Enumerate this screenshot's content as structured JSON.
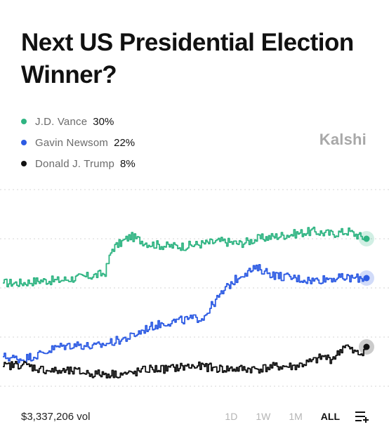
{
  "header": {
    "title": "Next US Presidential Election Winner?",
    "brand": "Kalshi"
  },
  "legend": [
    {
      "name": "J.D. Vance",
      "value": "30%",
      "color": "#2fb482"
    },
    {
      "name": "Gavin Newsom",
      "value": "22%",
      "color": "#2d5be3"
    },
    {
      "name": "Donald J. Trump",
      "value": "8%",
      "color": "#111111"
    }
  ],
  "footer": {
    "volume": "$3,337,206 vol",
    "ranges": [
      {
        "label": "1D",
        "active": false
      },
      {
        "label": "1W",
        "active": false
      },
      {
        "label": "1M",
        "active": false
      },
      {
        "label": "ALL",
        "active": true
      }
    ],
    "menu_icon": "list-add-icon"
  },
  "chart_data": {
    "type": "line",
    "title": "Next US Presidential Election Winner?",
    "xlabel": "",
    "ylabel": "",
    "ylim": [
      0,
      40
    ],
    "grid": true,
    "legend_position": "top-left",
    "series": [
      {
        "name": "J.D. Vance",
        "color": "#2fb482",
        "x": [
          0,
          5,
          10,
          15,
          20,
          25,
          28,
          30,
          32,
          35,
          40,
          45,
          50,
          55,
          60,
          65,
          70,
          75,
          80,
          85,
          90,
          95,
          98,
          100
        ],
        "values": [
          21,
          21,
          21.5,
          21.5,
          22,
          22.5,
          23,
          28,
          29,
          30.5,
          29,
          28.5,
          28.5,
          29,
          29.5,
          29,
          30,
          30.5,
          31,
          31.5,
          31,
          31.5,
          30.5,
          30
        ]
      },
      {
        "name": "Gavin Newsom",
        "color": "#2d5be3",
        "x": [
          0,
          5,
          10,
          15,
          20,
          25,
          30,
          35,
          40,
          45,
          50,
          55,
          58,
          62,
          66,
          70,
          75,
          80,
          85,
          90,
          95,
          100
        ],
        "values": [
          6,
          5.5,
          6.5,
          8,
          8.5,
          8,
          9,
          10,
          12,
          13,
          13.5,
          14,
          17,
          20.5,
          23,
          24,
          22.5,
          22,
          21.5,
          22,
          22,
          22
        ]
      },
      {
        "name": "Donald J. Trump",
        "color": "#111111",
        "x": [
          0,
          5,
          10,
          15,
          20,
          25,
          30,
          35,
          40,
          45,
          50,
          55,
          60,
          65,
          70,
          75,
          80,
          85,
          88,
          90,
          92,
          94,
          96,
          98,
          100
        ],
        "values": [
          4,
          4.5,
          3.5,
          3,
          3,
          2.5,
          2.5,
          2.5,
          3.5,
          3.5,
          4,
          4,
          3.5,
          3.5,
          3.5,
          4,
          4,
          5,
          6,
          5.5,
          6.5,
          8.5,
          7,
          6.5,
          8
        ]
      }
    ]
  }
}
